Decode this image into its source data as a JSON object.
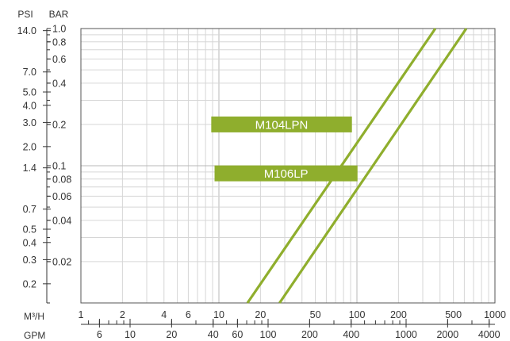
{
  "chart_data": {
    "type": "line",
    "title": "",
    "x_scale": "log",
    "y_scale": "log",
    "xlim_m3h": [
      1,
      1000
    ],
    "ylim_bar": [
      0.01,
      1.0
    ],
    "grid": true,
    "units": {
      "psi": "PSI",
      "bar": "BAR",
      "m3h": "M³/H",
      "gpm": "GPM"
    },
    "psi_ticks": [
      "14.0",
      "7.0",
      "5.0",
      "4.0",
      "3.0",
      "2.0",
      "1.4",
      "0.7",
      "0.5",
      "0.4",
      "0.3",
      "0.2"
    ],
    "bar_ticks": [
      "1.0",
      "0.8",
      "0.6",
      "0.4",
      "0.2",
      "0.1",
      "0.08",
      "0.06",
      "0.04",
      "0.02"
    ],
    "m3h_ticks": [
      "1",
      "2",
      "4",
      "6",
      "10",
      "20",
      "50",
      "100",
      "200",
      "500",
      "1000"
    ],
    "gpm_ticks": [
      "6",
      "10",
      "20",
      "40",
      "60",
      "100",
      "200",
      "400",
      "1000",
      "2000",
      "4000"
    ],
    "series": [
      {
        "name": "M104LPN",
        "color": "#8fae2d",
        "x": [
          16.1,
          370
        ],
        "y": [
          0.01,
          1.0
        ]
      },
      {
        "name": "M106LP",
        "color": "#8fae2d",
        "x": [
          27.5,
          620
        ],
        "y": [
          0.01,
          1.0
        ]
      }
    ]
  }
}
